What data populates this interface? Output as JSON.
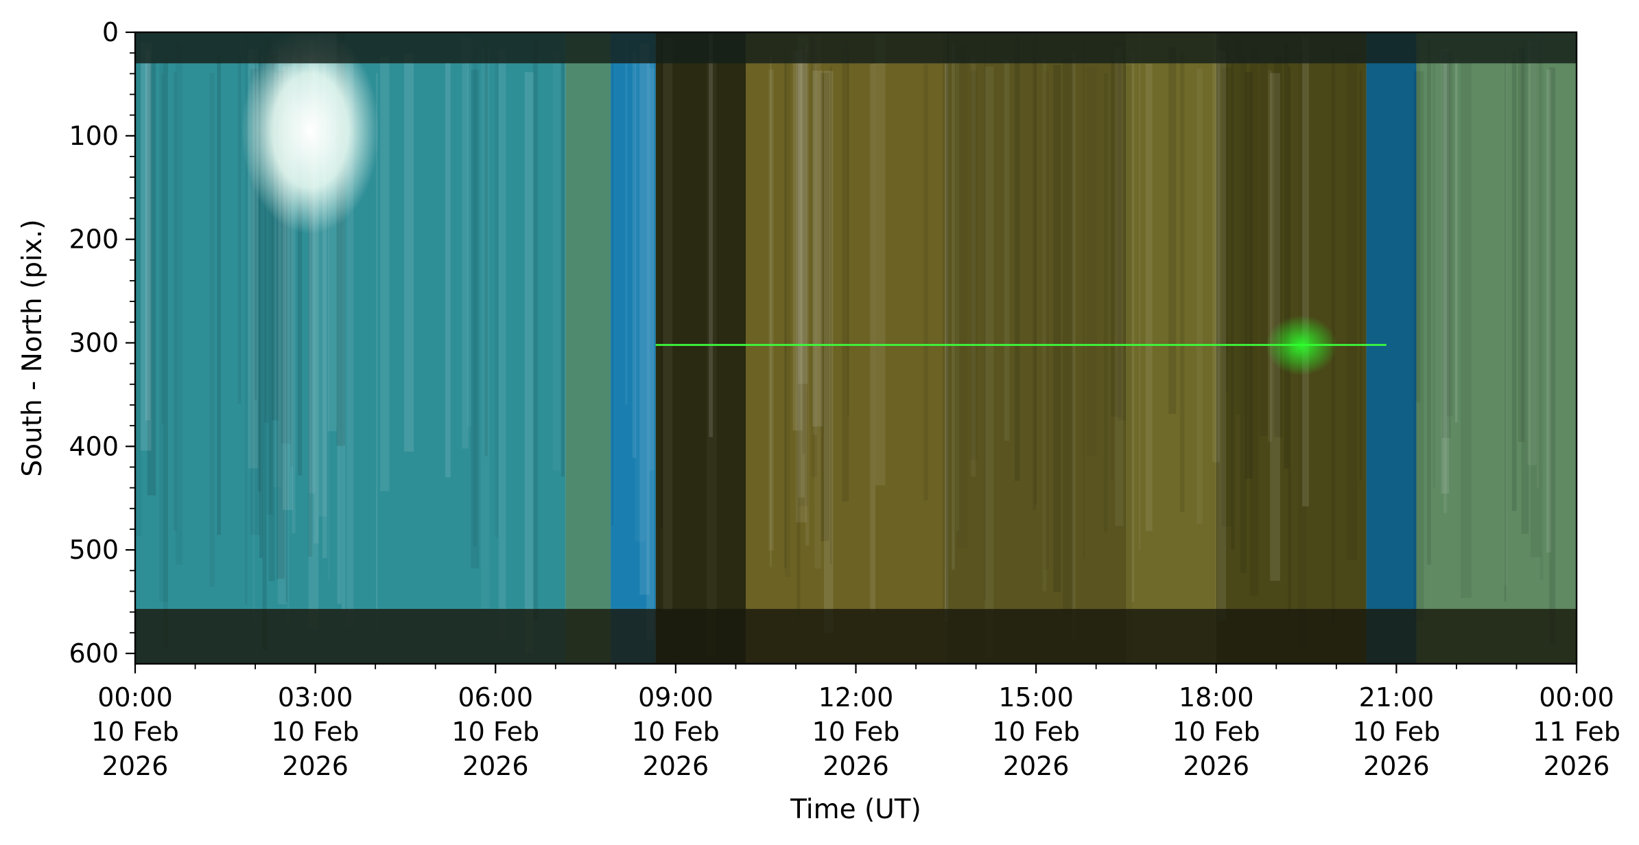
{
  "chart_data": {
    "type": "heatmap",
    "title": "",
    "xlabel": "Time (UT)",
    "ylabel": "South - North (pix.)",
    "xlim": [
      "2026-02-10T00:00",
      "2026-02-11T00:00"
    ],
    "ylim": [
      610,
      0
    ],
    "y_inverted": true,
    "grid": false,
    "legend": "none",
    "x_ticks": [
      {
        "value": "2026-02-10T00:00",
        "label": [
          "00:00",
          "10 Feb",
          "2026"
        ]
      },
      {
        "value": "2026-02-10T03:00",
        "label": [
          "03:00",
          "10 Feb",
          "2026"
        ]
      },
      {
        "value": "2026-02-10T06:00",
        "label": [
          "06:00",
          "10 Feb",
          "2026"
        ]
      },
      {
        "value": "2026-02-10T09:00",
        "label": [
          "09:00",
          "10 Feb",
          "2026"
        ]
      },
      {
        "value": "2026-02-10T12:00",
        "label": [
          "12:00",
          "10 Feb",
          "2026"
        ]
      },
      {
        "value": "2026-02-10T15:00",
        "label": [
          "15:00",
          "10 Feb",
          "2026"
        ]
      },
      {
        "value": "2026-02-10T18:00",
        "label": [
          "18:00",
          "10 Feb",
          "2026"
        ]
      },
      {
        "value": "2026-02-10T21:00",
        "label": [
          "21:00",
          "10 Feb",
          "2026"
        ]
      },
      {
        "value": "2026-02-11T00:00",
        "label": [
          "00:00",
          "11 Feb",
          "2026"
        ]
      }
    ],
    "y_ticks": [
      {
        "value": 0,
        "label": "0"
      },
      {
        "value": 100,
        "label": "100"
      },
      {
        "value": 200,
        "label": "200"
      },
      {
        "value": 300,
        "label": "300"
      },
      {
        "value": 400,
        "label": "400"
      },
      {
        "value": 500,
        "label": "500"
      },
      {
        "value": 600,
        "label": "600"
      }
    ],
    "y_minor_step": 20,
    "x_minor_step_hours": 1,
    "time_segments": [
      {
        "start": "2026-02-10T00:00",
        "end": "2026-02-10T07:10",
        "color": "#2f8f97"
      },
      {
        "start": "2026-02-10T07:10",
        "end": "2026-02-10T07:55",
        "color": "#4f8a6e"
      },
      {
        "start": "2026-02-10T07:55",
        "end": "2026-02-10T08:40",
        "color": "#1a7fb0"
      },
      {
        "start": "2026-02-10T08:40",
        "end": "2026-02-10T10:10",
        "color": "#2a2a12"
      },
      {
        "start": "2026-02-10T10:10",
        "end": "2026-02-10T13:30",
        "color": "#6b6224"
      },
      {
        "start": "2026-02-10T13:30",
        "end": "2026-02-10T16:30",
        "color": "#5a5520"
      },
      {
        "start": "2026-02-10T16:30",
        "end": "2026-02-10T18:00",
        "color": "#6f6a2a"
      },
      {
        "start": "2026-02-10T18:00",
        "end": "2026-02-10T20:30",
        "color": "#4a4818"
      },
      {
        "start": "2026-02-10T20:30",
        "end": "2026-02-10T21:20",
        "color": "#0f5f86"
      },
      {
        "start": "2026-02-10T21:20",
        "end": "2026-02-11T00:00",
        "color": "#5f8a62"
      }
    ],
    "features": [
      {
        "kind": "bright-sky-patch",
        "start": "2026-02-10T02:00",
        "end": "2026-02-10T03:50",
        "y_range": [
          30,
          160
        ],
        "color": "#f2fff6"
      },
      {
        "kind": "horizontal-dark-band",
        "y_range": [
          0,
          30
        ],
        "color": "#15201a"
      },
      {
        "kind": "horizontal-dark-band",
        "y_range": [
          557,
          610
        ],
        "color": "#1a1a0d"
      },
      {
        "kind": "green-emission-line",
        "start": "2026-02-10T08:40",
        "end": "2026-02-10T20:50",
        "y": 302,
        "color": "#3cff3c"
      },
      {
        "kind": "green-burst",
        "start": "2026-02-10T19:00",
        "end": "2026-02-10T19:50",
        "y_range": [
          285,
          320
        ],
        "color": "#2bff2b"
      }
    ]
  }
}
